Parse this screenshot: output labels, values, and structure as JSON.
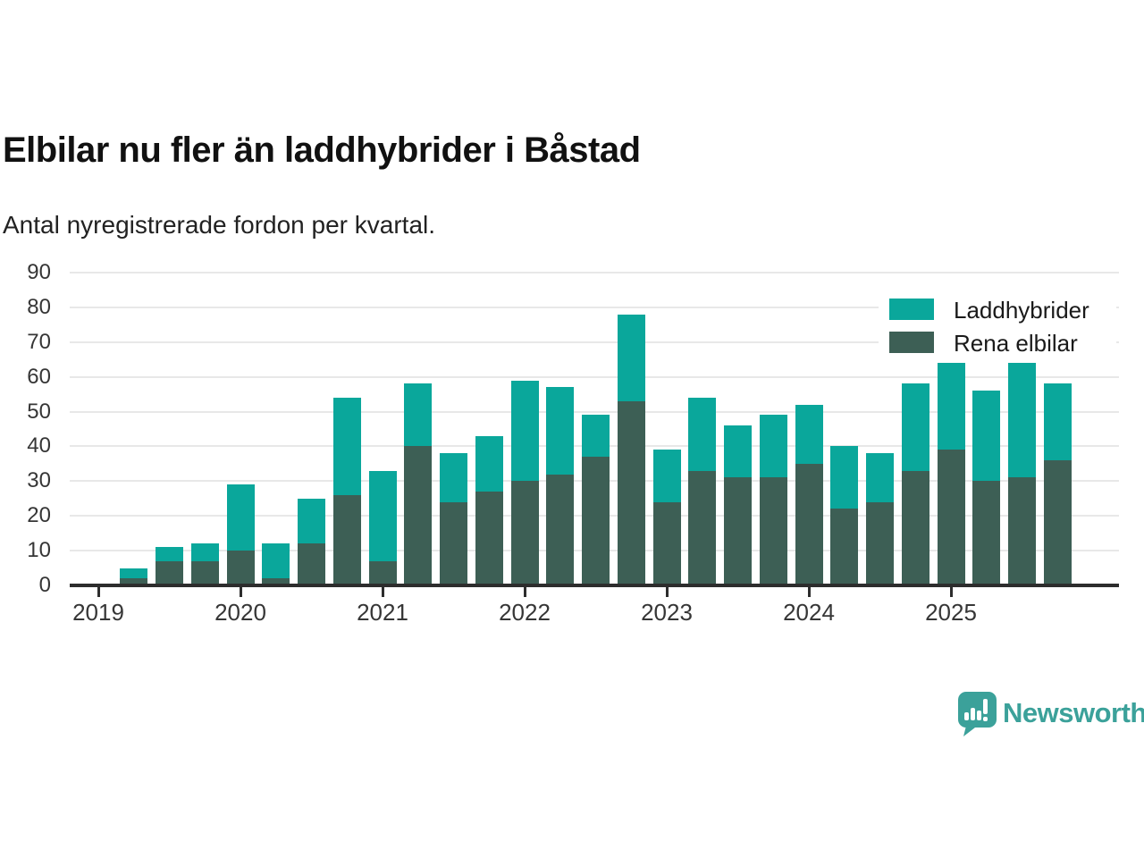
{
  "title": "Elbilar nu fler än laddhybrider i Båstad",
  "subtitle": "Antal nyregistrerade fordon per kvartal.",
  "legend": [
    {
      "label": "Laddhybrider",
      "color": "#0aa79b"
    },
    {
      "label": "Rena elbilar",
      "color": "#3d5f55"
    }
  ],
  "branding": {
    "logo_text": "Newsworthy",
    "logo_color": "#3ba19a"
  },
  "chart_data": {
    "type": "bar",
    "stacked": true,
    "title": "Elbilar nu fler än laddhybrider i Båstad",
    "subtitle": "Antal nyregistrerade fordon per kvartal.",
    "xlabel": "",
    "ylabel": "",
    "ylim": [
      0,
      90
    ],
    "yticks": [
      0,
      10,
      20,
      30,
      40,
      50,
      60,
      70,
      80,
      90
    ],
    "grid": "horizontal",
    "legend_position": "top-right",
    "x_tick_labels": [
      "2019",
      "2020",
      "2021",
      "2022",
      "2023",
      "2024",
      "2025"
    ],
    "categories": [
      "2019 Q2",
      "2019 Q3",
      "2019 Q4",
      "2020 Q1",
      "2020 Q2",
      "2020 Q3",
      "2020 Q4",
      "2021 Q1",
      "2021 Q2",
      "2021 Q3",
      "2021 Q4",
      "2022 Q1",
      "2022 Q2",
      "2022 Q3",
      "2022 Q4",
      "2023 Q1",
      "2023 Q2",
      "2023 Q3",
      "2023 Q4",
      "2024 Q1",
      "2024 Q2",
      "2024 Q3",
      "2024 Q4",
      "2025 Q1",
      "2025 Q2",
      "2025 Q3",
      "2025 Q4"
    ],
    "series": [
      {
        "name": "Laddhybrider",
        "color": "#0aa79b",
        "stack_position": "top",
        "values": [
          3,
          4,
          5,
          19,
          10,
          13,
          28,
          26,
          18,
          14,
          16,
          29,
          25,
          12,
          25,
          15,
          21,
          15,
          18,
          17,
          18,
          14,
          25,
          25,
          26,
          33,
          22
        ]
      },
      {
        "name": "Rena elbilar",
        "color": "#3d5f55",
        "stack_position": "bottom",
        "values": [
          2,
          7,
          7,
          10,
          2,
          12,
          26,
          7,
          40,
          24,
          27,
          30,
          32,
          37,
          53,
          24,
          33,
          31,
          31,
          35,
          22,
          24,
          33,
          39,
          30,
          31,
          36
        ]
      }
    ],
    "totals": [
      5,
      11,
      12,
      29,
      12,
      25,
      54,
      33,
      58,
      38,
      43,
      59,
      57,
      49,
      78,
      39,
      54,
      46,
      49,
      52,
      40,
      38,
      58,
      64,
      56,
      64,
      58
    ]
  }
}
